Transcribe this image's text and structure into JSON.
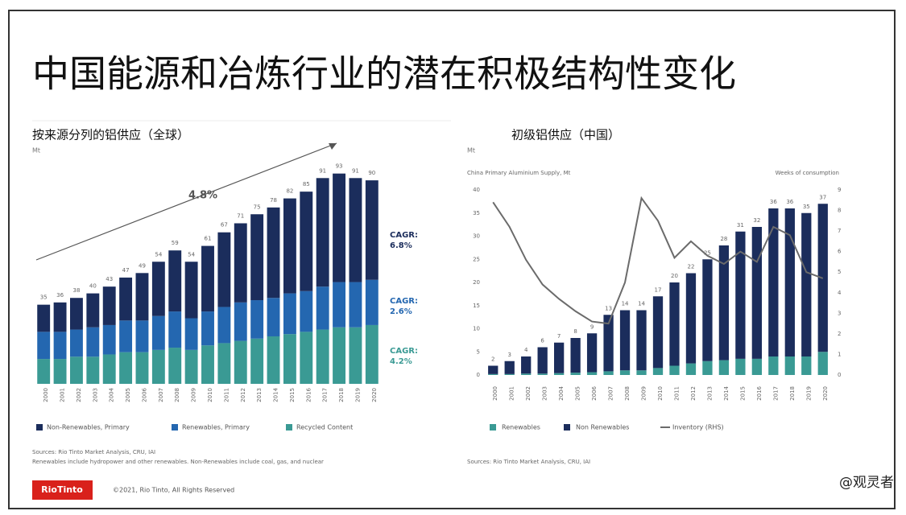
{
  "title": "中国能源和冶炼行业的潜在积极结构性变化",
  "chart_data": [
    {
      "type": "stacked_bar",
      "subtitle": "按来源分列的铝供应（全球）",
      "unit": "Mt",
      "categories": [
        "2000",
        "2001",
        "2002",
        "2003",
        "2004",
        "2005",
        "2006",
        "2007",
        "2008",
        "2009",
        "2010",
        "2011",
        "2012",
        "2013",
        "2014",
        "2015",
        "2016",
        "2017",
        "2018",
        "2019",
        "2020"
      ],
      "series": [
        {
          "name": "Recycled Content",
          "color": "#3a9a94",
          "values": [
            11,
            11,
            12,
            12,
            13,
            14,
            14,
            15,
            16,
            15,
            17,
            18,
            19,
            20,
            21,
            22,
            23,
            24,
            25,
            25,
            26
          ]
        },
        {
          "name": "Renewables, Primary",
          "color": "#2467b0",
          "values": [
            12,
            12,
            12,
            13,
            13,
            14,
            14,
            15,
            16,
            14,
            15,
            16,
            17,
            17,
            17,
            18,
            18,
            19,
            20,
            20,
            20
          ]
        },
        {
          "name": "Non-Renewables, Primary",
          "color": "#1b2d5c",
          "values": [
            12,
            13,
            14,
            15,
            17,
            19,
            21,
            24,
            27,
            25,
            29,
            33,
            35,
            38,
            40,
            42,
            44,
            48,
            48,
            46,
            44
          ]
        }
      ],
      "totals": [
        35,
        36,
        38,
        40,
        43,
        47,
        49,
        54,
        59,
        54,
        61,
        67,
        71,
        75,
        78,
        82,
        85,
        91,
        93,
        91,
        90
      ],
      "trend_label": "4.8%",
      "annotations": [
        [
          "CAGR:",
          "6.8%"
        ],
        [
          "CAGR:",
          "2.6%"
        ],
        [
          "CAGR:",
          "4.2%"
        ]
      ],
      "notes": [
        "Sources: Rio Tinto Market Analysis, CRU, IAI",
        "Renewables include hydropower and other renewables. Non-Renewables include coal, gas, and nuclear"
      ]
    },
    {
      "type": "bar_line",
      "subtitle": "初级铝供应（中国）",
      "unit": "Mt",
      "y_label": "China Primary Aluminium Supply, Mt",
      "y2_label": "Weeks of consumption",
      "categories": [
        "2000",
        "2001",
        "2002",
        "2003",
        "2004",
        "2005",
        "2006",
        "2007",
        "2008",
        "2009",
        "2010",
        "2011",
        "2012",
        "2013",
        "2014",
        "2015",
        "2016",
        "2017",
        "2018",
        "2019",
        "2020"
      ],
      "ylim": [
        0,
        40
      ],
      "yticks": [
        0,
        5,
        10,
        15,
        20,
        25,
        30,
        35,
        40
      ],
      "y2lim": [
        0,
        9
      ],
      "y2ticks": [
        0,
        1,
        2,
        3,
        4,
        5,
        6,
        7,
        8,
        9
      ],
      "series": [
        {
          "name": "Renewables",
          "color": "#3a9a94",
          "values": [
            0.2,
            0.2,
            0.3,
            0.3,
            0.4,
            0.5,
            0.6,
            0.8,
            1,
            1,
            1.5,
            2,
            2.5,
            3,
            3.2,
            3.5,
            3.5,
            4,
            4,
            4,
            5
          ]
        },
        {
          "name": "Non Renewables",
          "color": "#1b2d5c",
          "values": [
            1.8,
            2.8,
            3.7,
            5.7,
            6.6,
            7.5,
            8.4,
            12.2,
            13,
            13,
            15.5,
            18,
            19.5,
            22,
            24.8,
            27.5,
            28.5,
            32,
            32,
            31,
            32
          ]
        },
        {
          "name": "Inventory (RHS)",
          "color": "#6b6b6b",
          "axis": "y2",
          "values": [
            8.4,
            7.2,
            5.6,
            4.4,
            3.7,
            3.1,
            2.6,
            2.5,
            4.5,
            8.6,
            7.5,
            5.7,
            6.5,
            5.8,
            5.4,
            6.0,
            5.5,
            7.2,
            6.8,
            5.0,
            4.7
          ]
        }
      ],
      "totals": [
        2,
        3,
        4,
        6,
        7,
        8,
        9,
        13,
        14,
        14,
        17,
        20,
        22,
        25,
        28,
        31,
        32,
        36,
        36,
        35,
        37
      ],
      "notes": [
        "Sources: Rio Tinto Market Analysis, CRU, IAI"
      ]
    }
  ],
  "footer": {
    "logo": "RioTinto",
    "copyright": "©2021, Rio Tinto, All Rights Reserved"
  },
  "watermark": "@观灵者"
}
